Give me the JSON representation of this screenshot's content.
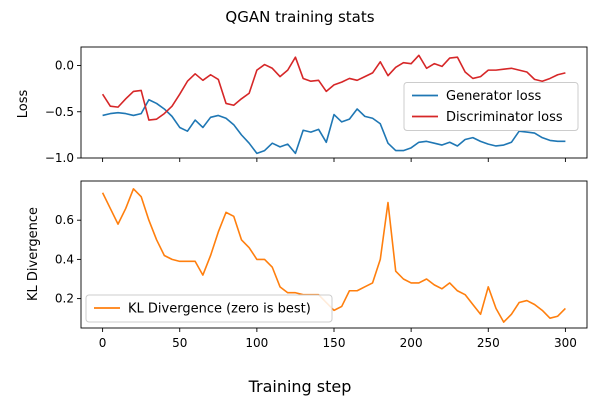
{
  "figure": {
    "title": "QGAN training stats",
    "xlabel": "Training step"
  },
  "chart_data": [
    {
      "type": "line",
      "ylabel": "Loss",
      "xlim": [
        -14,
        314
      ],
      "ylim": [
        -1.0,
        0.2
      ],
      "x_ticks": [
        0,
        50,
        100,
        150,
        200,
        250,
        300
      ],
      "y_ticks": [
        -1.0,
        -0.5,
        0.0
      ],
      "y_tick_labels": [
        "−1.0",
        "−0.5",
        "0.0"
      ],
      "legend_position": "center-right",
      "series": [
        {
          "name": "Generator loss",
          "color": "#1f77b4",
          "x": [
            0,
            5,
            10,
            15,
            20,
            25,
            30,
            35,
            40,
            45,
            50,
            55,
            60,
            65,
            70,
            75,
            80,
            85,
            90,
            95,
            100,
            105,
            110,
            115,
            120,
            125,
            130,
            135,
            140,
            145,
            150,
            155,
            160,
            165,
            170,
            175,
            180,
            185,
            190,
            195,
            200,
            205,
            210,
            215,
            220,
            225,
            230,
            235,
            240,
            245,
            250,
            255,
            260,
            265,
            270,
            275,
            280,
            285,
            290,
            295,
            300
          ],
          "y": [
            -0.54,
            -0.52,
            -0.51,
            -0.52,
            -0.54,
            -0.52,
            -0.37,
            -0.41,
            -0.47,
            -0.55,
            -0.67,
            -0.71,
            -0.59,
            -0.67,
            -0.56,
            -0.54,
            -0.57,
            -0.64,
            -0.75,
            -0.84,
            -0.95,
            -0.92,
            -0.84,
            -0.88,
            -0.85,
            -0.95,
            -0.7,
            -0.72,
            -0.69,
            -0.83,
            -0.53,
            -0.61,
            -0.58,
            -0.47,
            -0.55,
            -0.57,
            -0.63,
            -0.84,
            -0.92,
            -0.92,
            -0.89,
            -0.83,
            -0.82,
            -0.84,
            -0.86,
            -0.83,
            -0.87,
            -0.8,
            -0.78,
            -0.82,
            -0.85,
            -0.87,
            -0.86,
            -0.83,
            -0.71,
            -0.72,
            -0.73,
            -0.78,
            -0.81,
            -0.82,
            -0.82
          ]
        },
        {
          "name": "Discriminator loss",
          "color": "#d62728",
          "x": [
            0,
            5,
            10,
            15,
            20,
            25,
            30,
            35,
            40,
            45,
            50,
            55,
            60,
            65,
            70,
            75,
            80,
            85,
            90,
            95,
            100,
            105,
            110,
            115,
            120,
            125,
            130,
            135,
            140,
            145,
            150,
            155,
            160,
            165,
            170,
            175,
            180,
            185,
            190,
            195,
            200,
            205,
            210,
            215,
            220,
            225,
            230,
            235,
            240,
            245,
            250,
            255,
            260,
            265,
            270,
            275,
            280,
            285,
            290,
            295,
            300
          ],
          "y": [
            -0.31,
            -0.44,
            -0.45,
            -0.36,
            -0.28,
            -0.27,
            -0.59,
            -0.58,
            -0.52,
            -0.44,
            -0.31,
            -0.17,
            -0.09,
            -0.16,
            -0.1,
            -0.15,
            -0.41,
            -0.43,
            -0.36,
            -0.3,
            -0.05,
            0.01,
            -0.03,
            -0.12,
            -0.05,
            0.09,
            -0.14,
            -0.17,
            -0.16,
            -0.28,
            -0.21,
            -0.18,
            -0.14,
            -0.16,
            -0.12,
            -0.08,
            0.04,
            -0.11,
            -0.02,
            0.03,
            0.02,
            0.11,
            -0.03,
            0.02,
            -0.01,
            0.08,
            0.09,
            -0.07,
            -0.14,
            -0.12,
            -0.05,
            -0.05,
            -0.04,
            -0.03,
            -0.05,
            -0.07,
            -0.15,
            -0.17,
            -0.14,
            -0.1,
            -0.08
          ]
        }
      ]
    },
    {
      "type": "line",
      "ylabel": "KL Divergence",
      "xlim": [
        -14,
        314
      ],
      "ylim": [
        0.05,
        0.8
      ],
      "x_ticks": [
        0,
        50,
        100,
        150,
        200,
        250,
        300
      ],
      "y_ticks": [
        0.2,
        0.4,
        0.6
      ],
      "y_tick_labels": [
        "0.2",
        "0.4",
        "0.6"
      ],
      "legend_position": "lower-left",
      "series": [
        {
          "name": "KL Divergence (zero is best)",
          "color": "#ff7f0e",
          "x": [
            0,
            5,
            10,
            15,
            20,
            25,
            30,
            35,
            40,
            45,
            50,
            55,
            60,
            65,
            70,
            75,
            80,
            85,
            90,
            95,
            100,
            105,
            110,
            115,
            120,
            125,
            130,
            135,
            140,
            145,
            150,
            155,
            160,
            165,
            170,
            175,
            180,
            185,
            190,
            195,
            200,
            205,
            210,
            215,
            220,
            225,
            230,
            235,
            240,
            245,
            250,
            255,
            260,
            265,
            270,
            275,
            280,
            285,
            290,
            295,
            300
          ],
          "y": [
            0.74,
            0.66,
            0.58,
            0.66,
            0.76,
            0.72,
            0.6,
            0.5,
            0.42,
            0.4,
            0.39,
            0.39,
            0.39,
            0.32,
            0.42,
            0.54,
            0.64,
            0.62,
            0.5,
            0.46,
            0.4,
            0.4,
            0.36,
            0.26,
            0.23,
            0.23,
            0.22,
            0.22,
            0.22,
            0.18,
            0.14,
            0.16,
            0.24,
            0.24,
            0.26,
            0.28,
            0.4,
            0.69,
            0.34,
            0.3,
            0.28,
            0.28,
            0.3,
            0.27,
            0.25,
            0.28,
            0.24,
            0.22,
            0.17,
            0.12,
            0.26,
            0.15,
            0.08,
            0.12,
            0.18,
            0.19,
            0.17,
            0.14,
            0.1,
            0.11,
            0.15
          ]
        }
      ]
    }
  ]
}
